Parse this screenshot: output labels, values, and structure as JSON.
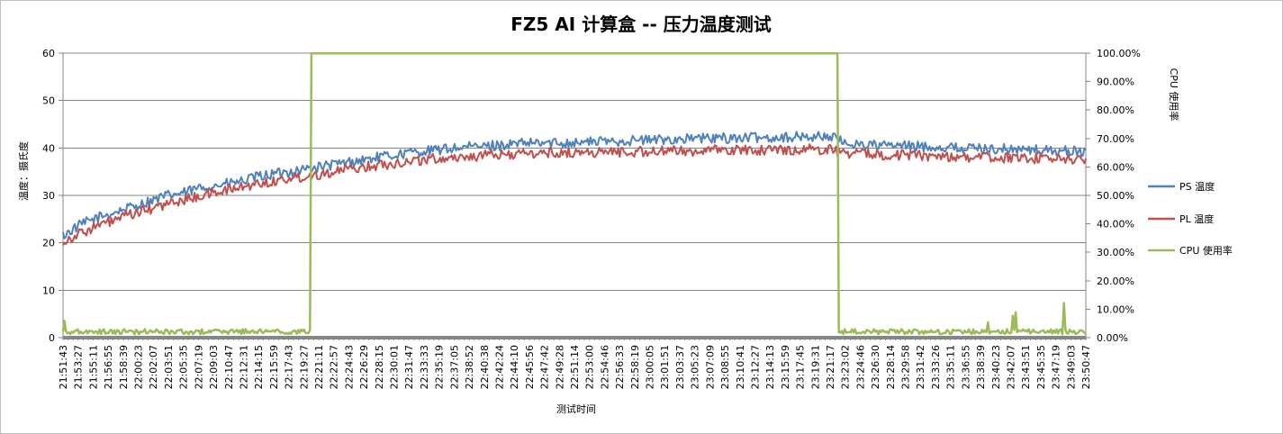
{
  "chart_data": {
    "type": "line",
    "title": "FZ5 AI 计算盒 --  压力温度测试",
    "xlabel": "测试时间",
    "ylabel": "温度：摄氏度",
    "y2label": "CPU 使用率",
    "ylim": [
      0,
      60
    ],
    "y2lim": [
      0,
      1
    ],
    "yticks": [
      "0",
      "10",
      "20",
      "30",
      "40",
      "50",
      "60"
    ],
    "y2ticks": [
      "0.00%",
      "10.00%",
      "20.00%",
      "30.00%",
      "40.00%",
      "50.00%",
      "60.00%",
      "70.00%",
      "80.00%",
      "90.00%",
      "100.00%"
    ],
    "grid": true,
    "legend_position": "right",
    "x_tick_labels": [
      "21:51:43",
      "21:53:27",
      "21:55:11",
      "21:56:55",
      "21:58:39",
      "22:00:23",
      "22:02:07",
      "22:03:51",
      "22:05:35",
      "22:07:19",
      "22:09:03",
      "22:10:47",
      "22:12:31",
      "22:14:15",
      "22:15:59",
      "22:17:43",
      "22:19:27",
      "22:21:11",
      "22:22:57",
      "22:24:43",
      "22:26:29",
      "22:28:15",
      "22:30:01",
      "22:31:47",
      "22:33:33",
      "22:35:19",
      "22:37:05",
      "22:38:52",
      "22:40:38",
      "22:42:24",
      "22:44:10",
      "22:45:56",
      "22:47:42",
      "22:49:28",
      "22:51:14",
      "22:53:00",
      "22:54:46",
      "22:56:33",
      "22:58:19",
      "23:00:05",
      "23:01:51",
      "23:03:37",
      "23:05:23",
      "23:07:09",
      "23:08:55",
      "23:10:41",
      "23:12:27",
      "23:14:13",
      "23:15:59",
      "23:17:45",
      "23:19:31",
      "23:21:17",
      "23:23:02",
      "23:24:46",
      "23:26:30",
      "23:28:14",
      "23:29:58",
      "23:31:42",
      "23:33:26",
      "23:35:11",
      "23:36:55",
      "23:38:39",
      "23:40:23",
      "23:42:07",
      "23:43:51",
      "23:45:35",
      "23:47:19",
      "23:49:03",
      "23:50:47"
    ],
    "series": [
      {
        "name": "PS 温度",
        "axis": "left",
        "color": "#4f81bd",
        "values": [
          21.5,
          23.5,
          25,
          26,
          27,
          28,
          29,
          30,
          30.5,
          31.5,
          32,
          32.5,
          33,
          34,
          34.5,
          35,
          35.5,
          36,
          36.5,
          37,
          37.5,
          38,
          38.5,
          39,
          39.3,
          39.6,
          40,
          40.2,
          40.4,
          40.6,
          40.8,
          41,
          41,
          41.1,
          41.2,
          41.3,
          41.4,
          41.5,
          41.6,
          41.7,
          41.8,
          41.9,
          42,
          42,
          42.1,
          42.1,
          42.2,
          42.2,
          42.3,
          42.3,
          42.4,
          42.5,
          41,
          40.8,
          40.6,
          40.5,
          40.4,
          40.3,
          40.2,
          40.1,
          40,
          39.9,
          39.8,
          39.7,
          39.6,
          39.5,
          39.4,
          39.3,
          39.2
        ]
      },
      {
        "name": "PL 温度",
        "axis": "left",
        "color": "#c0504d",
        "values": [
          20.2,
          21.8,
          23.2,
          24.3,
          25.4,
          26.4,
          27.3,
          28.2,
          29,
          29.8,
          30.5,
          31.2,
          31.8,
          32.5,
          33,
          33.5,
          34,
          34.5,
          35,
          35.5,
          36,
          36.4,
          36.8,
          37.2,
          37.5,
          37.8,
          38,
          38.2,
          38.4,
          38.6,
          38.7,
          38.8,
          38.9,
          39,
          39,
          39.1,
          39.1,
          39.2,
          39.2,
          39.3,
          39.3,
          39.4,
          39.4,
          39.5,
          39.5,
          39.5,
          39.6,
          39.6,
          39.6,
          39.7,
          39.7,
          39.8,
          39,
          38.8,
          38.7,
          38.6,
          38.5,
          38.4,
          38.3,
          38.2,
          38.1,
          38,
          38,
          37.9,
          37.8,
          37.8,
          37.7,
          37.6,
          37.5
        ]
      },
      {
        "name": "CPU 使用率",
        "axis": "right",
        "color": "#9bbb59",
        "values": [
          0.02,
          0.02,
          0.02,
          0.02,
          0.02,
          0.02,
          0.02,
          0.02,
          0.02,
          0.02,
          0.02,
          0.02,
          0.02,
          0.02,
          0.02,
          0.02,
          0.02,
          1,
          1,
          1,
          1,
          1,
          1,
          1,
          1,
          1,
          1,
          1,
          1,
          1,
          1,
          1,
          1,
          1,
          1,
          1,
          1,
          1,
          1,
          1,
          1,
          1,
          1,
          1,
          1,
          1,
          1,
          1,
          1,
          1,
          1,
          1,
          0.02,
          0.02,
          0.02,
          0.02,
          0.02,
          0.02,
          0.02,
          0.02,
          0.02,
          0.02,
          0.02,
          0.02,
          0.02,
          0.02,
          0.02,
          0.02,
          0.02
        ]
      }
    ]
  }
}
